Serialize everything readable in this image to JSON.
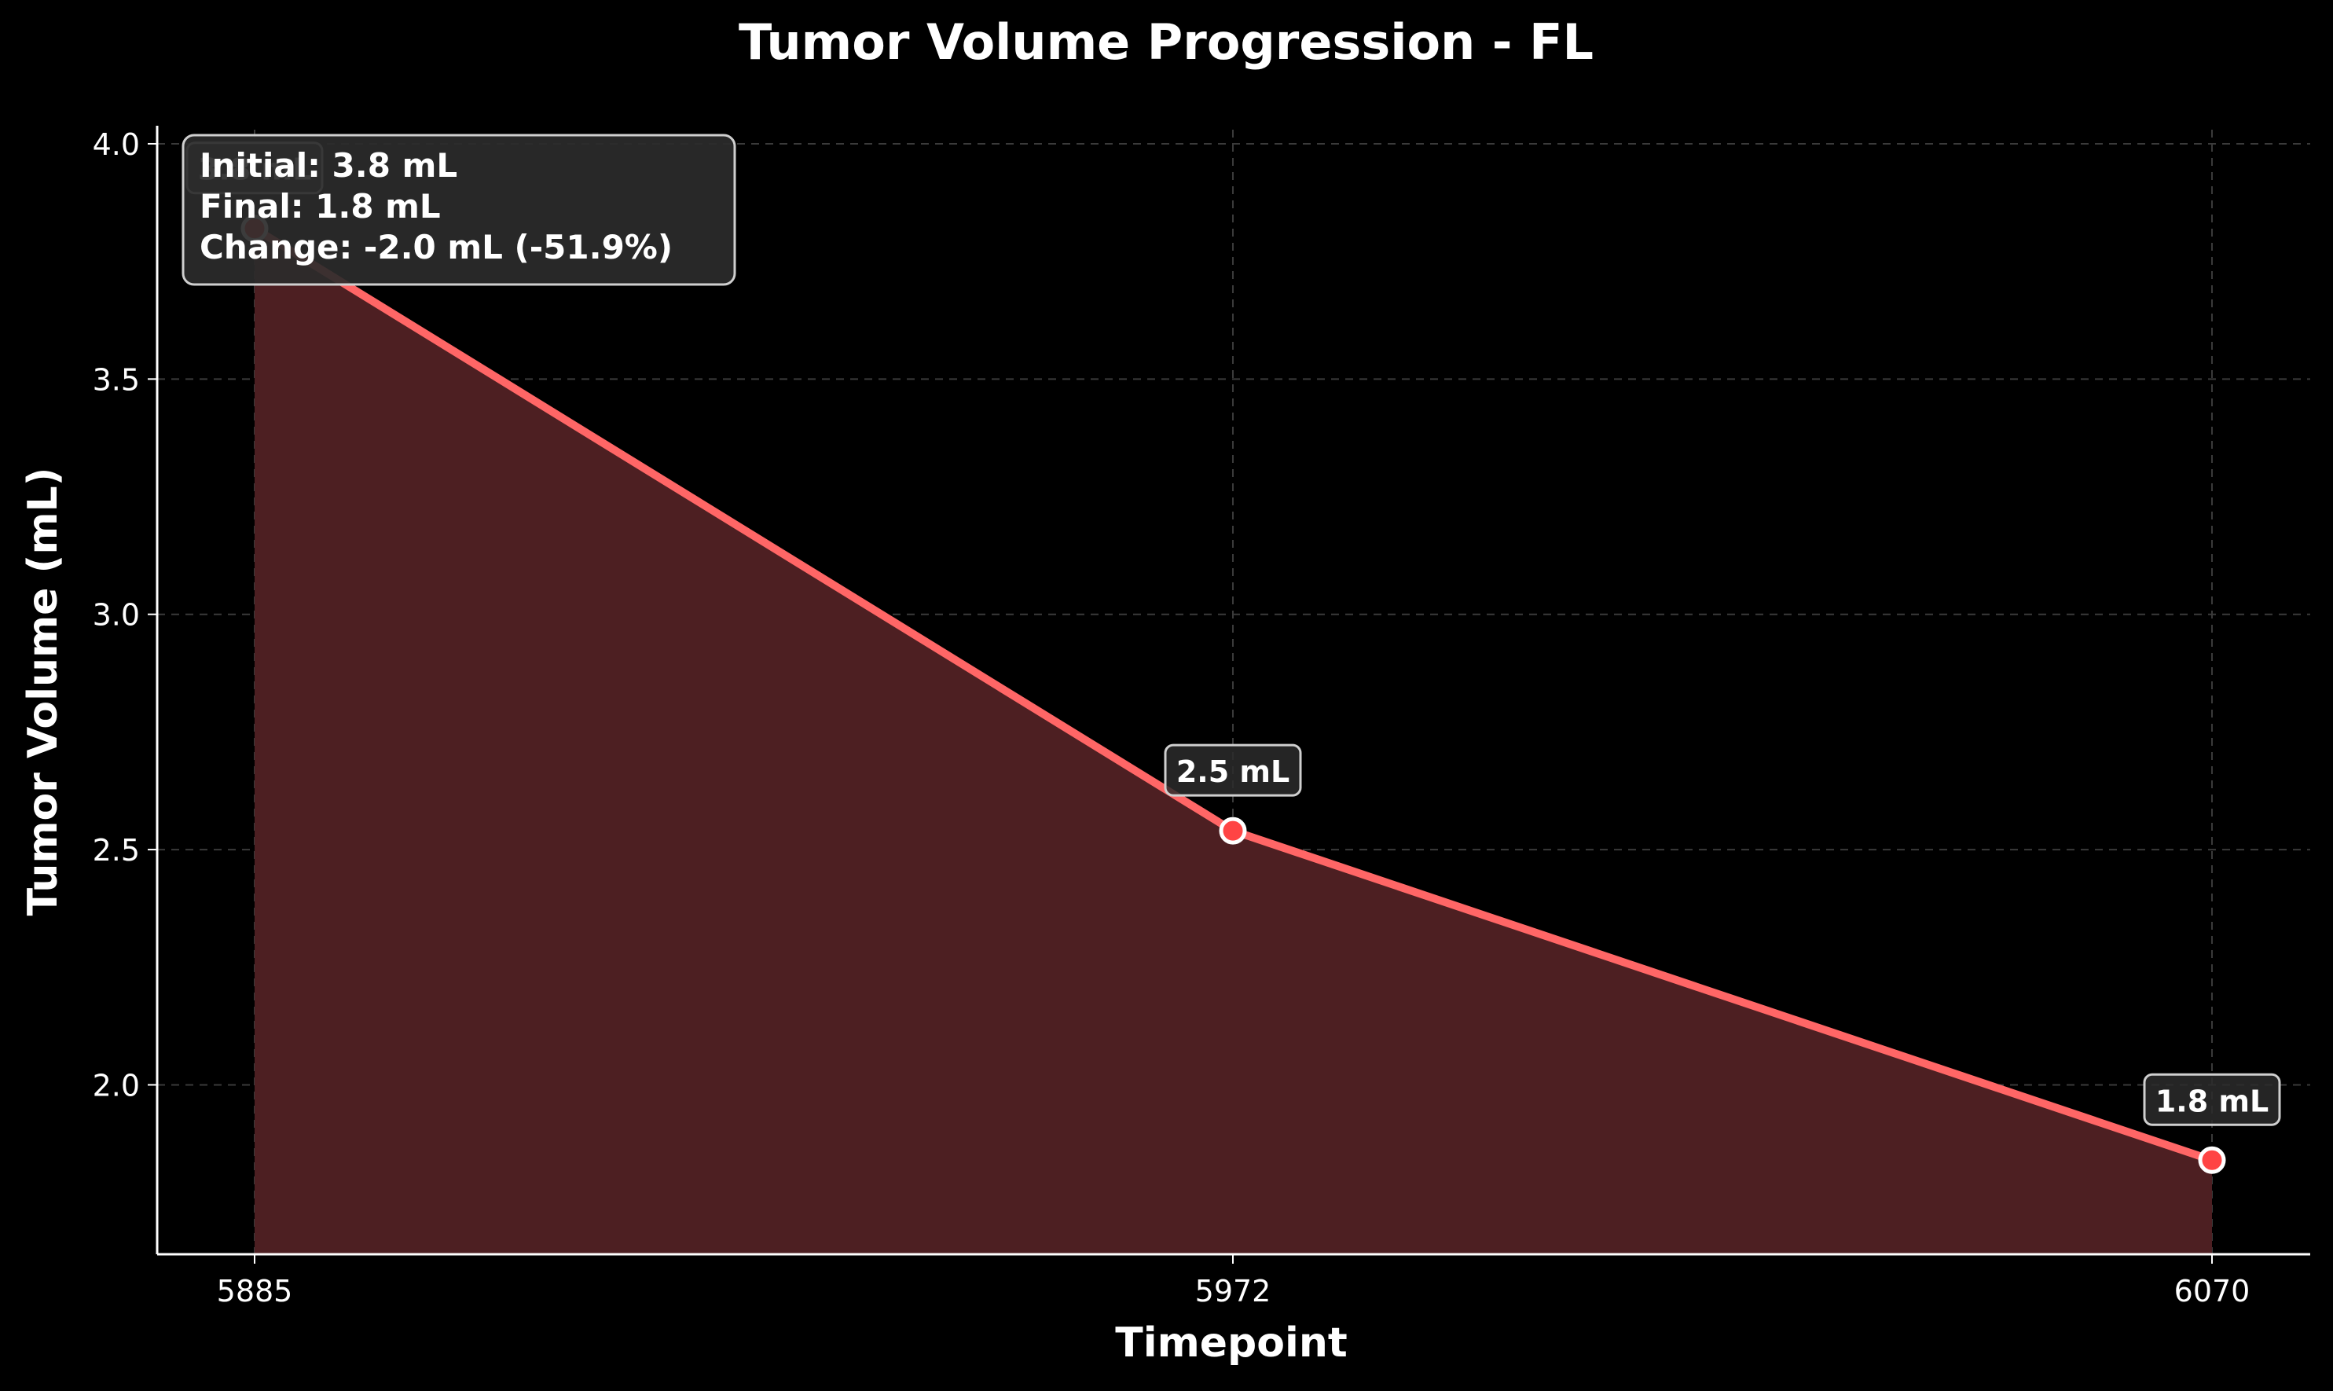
{
  "chart_data": {
    "type": "area",
    "title": "Tumor Volume Progression - FL",
    "xlabel": "Timepoint",
    "ylabel": "Tumor Volume (mL)",
    "categories": [
      "5885",
      "5972",
      "6070"
    ],
    "values": [
      3.82,
      2.54,
      1.84
    ],
    "ylim": [
      1.64,
      4.03
    ],
    "yticks": [
      "2.0",
      "2.5",
      "3.0",
      "3.5",
      "4.0"
    ],
    "point_labels": [
      "3.8 mL",
      "2.5 mL",
      "1.8 mL"
    ],
    "grid": true,
    "summary_box": {
      "lines": [
        "Initial: 3.8 mL",
        "Final: 1.8 mL",
        "Change: -2.0 mL (-51.9%)"
      ]
    },
    "colors": {
      "background": "#000000",
      "line": "#ff6666",
      "fill": "#4d1f22",
      "marker": "#ff4444",
      "marker_edge": "#ffffff",
      "text": "#ffffff",
      "grid": "#3a3a3a"
    }
  }
}
